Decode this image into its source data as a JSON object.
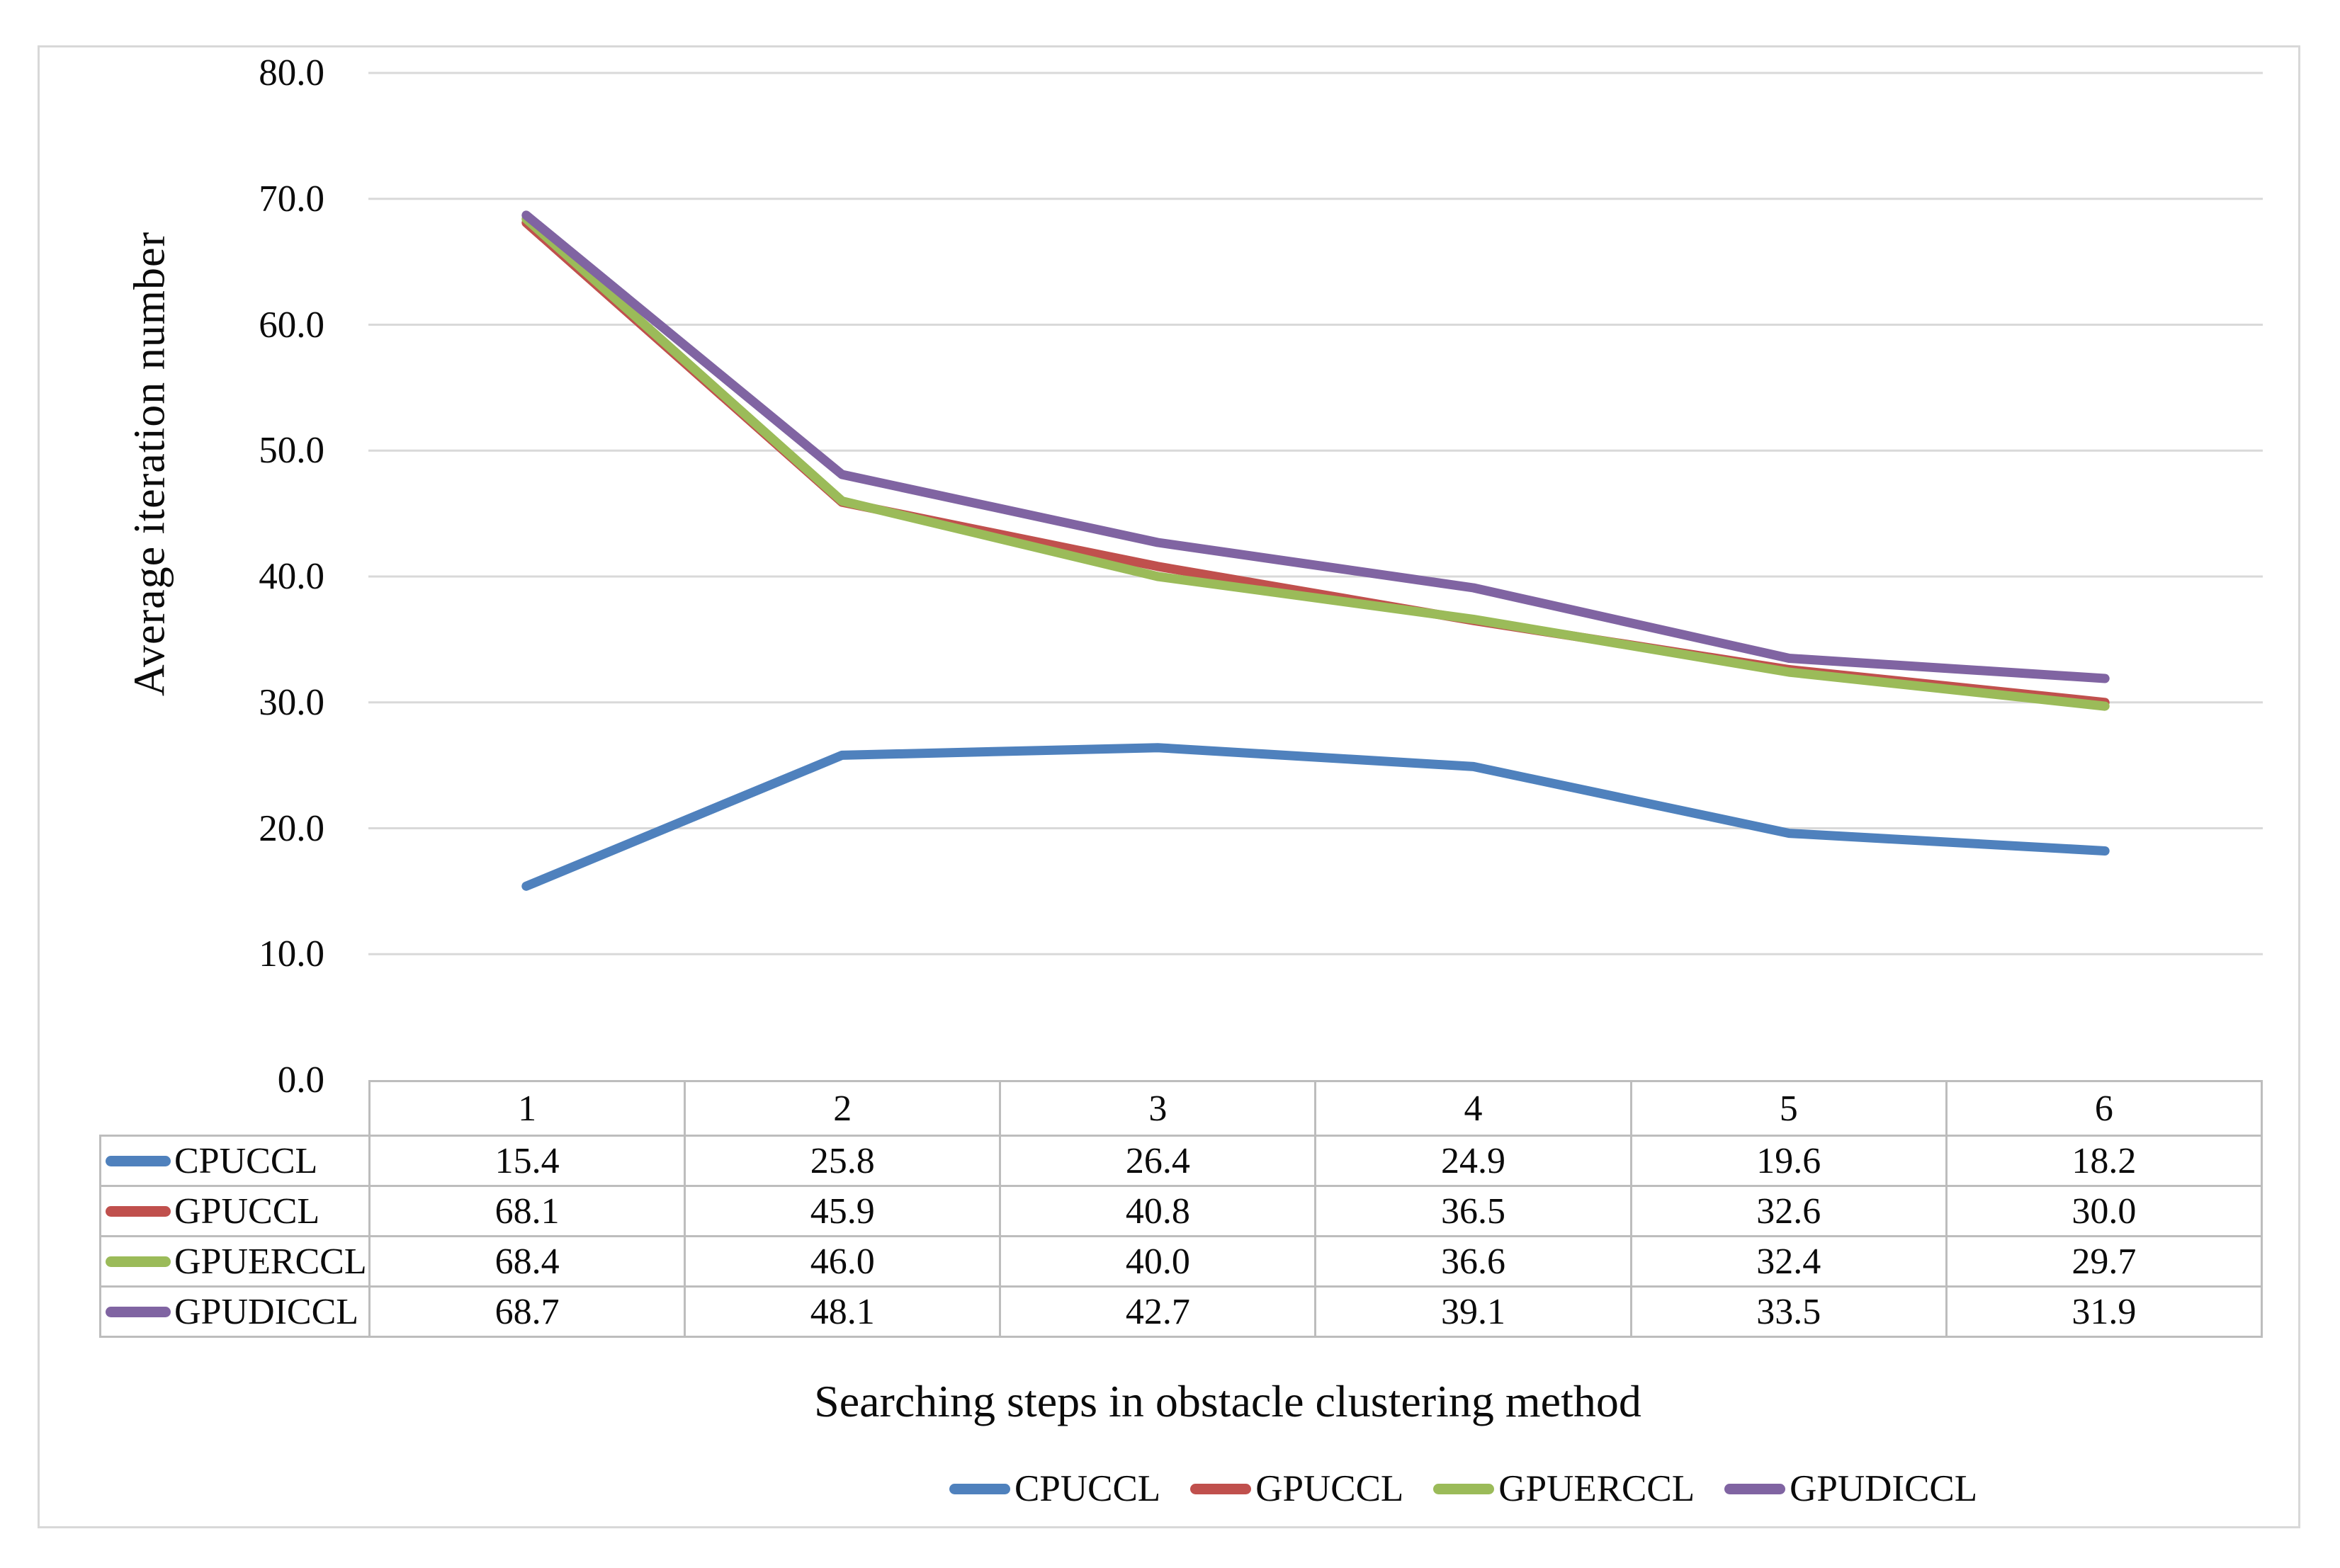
{
  "chart": {
    "y_axis_title": "Average iteration number",
    "x_axis_title": "Searching steps in obstacle clustering method",
    "y_tick_labels": [
      "80.0",
      "70.0",
      "60.0",
      "50.0",
      "40.0",
      "30.0",
      "20.0",
      "10.0",
      "0.0"
    ]
  },
  "chart_data": {
    "type": "line",
    "title": "",
    "xlabel": "Searching steps in obstacle clustering method",
    "ylabel": "Average iteration number",
    "categories": [
      "1",
      "2",
      "3",
      "4",
      "5",
      "6"
    ],
    "ylim": [
      0,
      80
    ],
    "y_tick_step": 10,
    "grid": "horizontal",
    "legend_position": "bottom",
    "data_table_shown": true,
    "series": [
      {
        "name": "CPUCCL",
        "color": "#4F81BD",
        "values": [
          15.4,
          25.8,
          26.4,
          24.9,
          19.6,
          18.2
        ]
      },
      {
        "name": "GPUCCL",
        "color": "#C0504D",
        "values": [
          68.1,
          45.9,
          40.8,
          36.5,
          32.6,
          30.0
        ]
      },
      {
        "name": "GPUERCCL",
        "color": "#9BBB59",
        "values": [
          68.4,
          46.0,
          40.0,
          36.6,
          32.4,
          29.7
        ]
      },
      {
        "name": "GPUDICCL",
        "color": "#8064A2",
        "values": [
          68.7,
          48.1,
          42.7,
          39.1,
          33.5,
          31.9
        ]
      }
    ]
  },
  "style": {
    "gridline_color": "#d9d9d9",
    "table_border_color": "#bdbdbd",
    "frame_border_color": "#d8d8d8"
  }
}
